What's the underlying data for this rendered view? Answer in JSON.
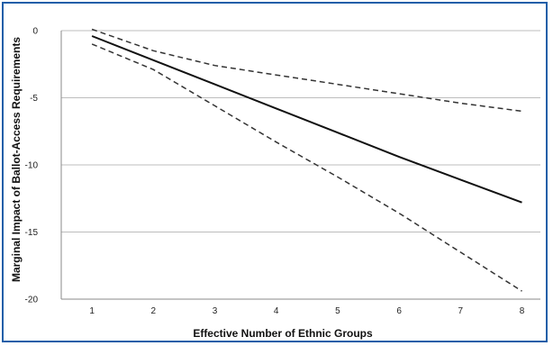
{
  "chart_data": {
    "type": "line",
    "title": "",
    "xlabel": "Effective Number of Ethnic Groups",
    "ylabel": "Marginal Impact of Ballot-Access Requirements",
    "x": [
      1,
      2,
      3,
      4,
      5,
      6,
      7,
      8
    ],
    "x_ticks": [
      "1",
      "2",
      "3",
      "4",
      "5",
      "6",
      "7",
      "8"
    ],
    "y_ticks": [
      "0",
      "-5",
      "-10",
      "-15",
      "-20"
    ],
    "xlim": [
      0.5,
      8.3
    ],
    "ylim": [
      -20,
      0
    ],
    "grid": true,
    "legend": "none",
    "series": [
      {
        "style": "solid",
        "color": "#111111",
        "values": [
          -0.4,
          -2.2,
          -4.0,
          -5.8,
          -7.6,
          -9.4,
          -11.1,
          -12.8
        ]
      },
      {
        "style": "dashed",
        "color": "#333333",
        "values": [
          0.1,
          -1.5,
          -2.6,
          -3.3,
          -4.0,
          -4.7,
          -5.4,
          -6.0
        ]
      },
      {
        "style": "dashed",
        "color": "#333333",
        "values": [
          -1.0,
          -2.9,
          -5.6,
          -8.3,
          -10.9,
          -13.6,
          -16.5,
          -19.4
        ]
      }
    ]
  }
}
